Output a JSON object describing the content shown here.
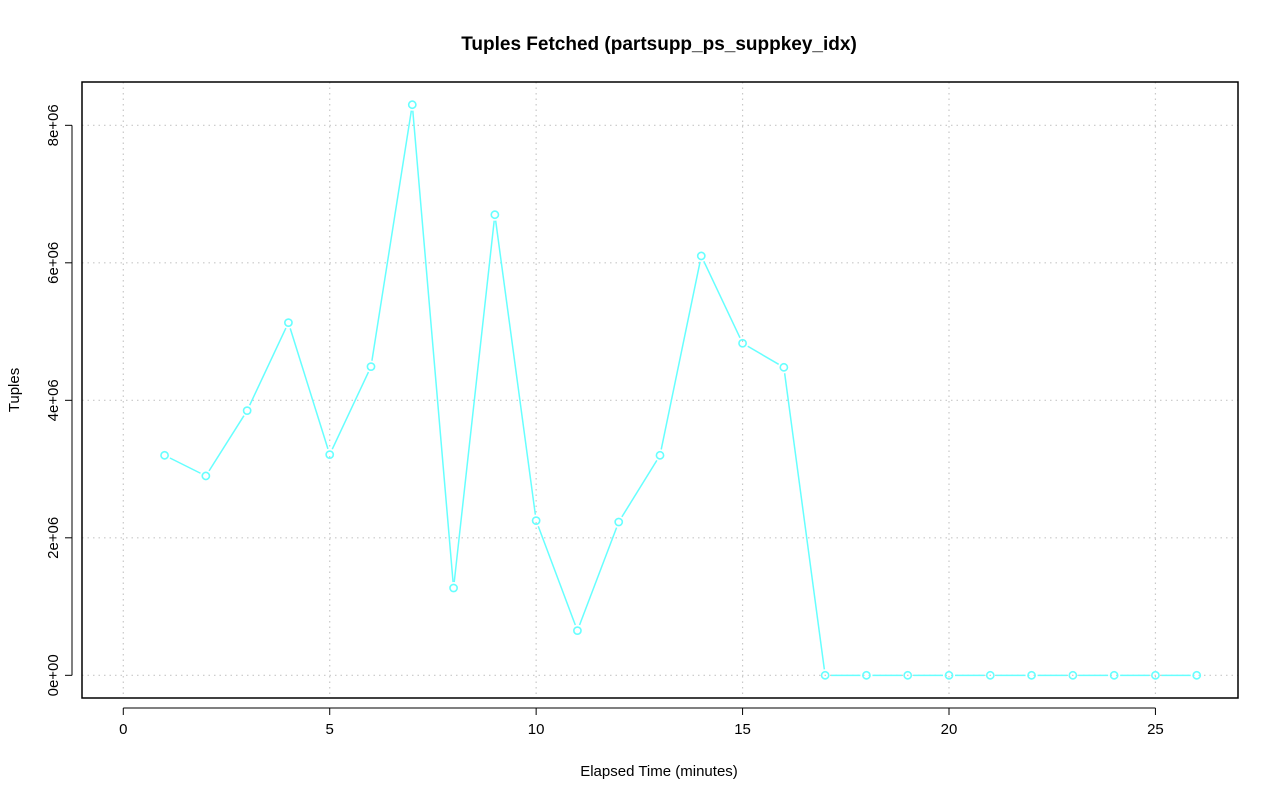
{
  "chart_data": {
    "type": "line",
    "title": "Tuples Fetched (partsupp_ps_suppkey_idx)",
    "xlabel": "Elapsed Time (minutes)",
    "ylabel": "Tuples",
    "xlim": [
      -1,
      27
    ],
    "ylim": [
      -330000,
      8630000
    ],
    "x_ticks": [
      0,
      5,
      10,
      15,
      20,
      25
    ],
    "x_tick_labels": [
      "0",
      "5",
      "10",
      "15",
      "20",
      "25"
    ],
    "y_ticks": [
      0,
      2000000,
      4000000,
      6000000,
      8000000
    ],
    "y_tick_labels": [
      "0e+00",
      "2e+06",
      "4e+06",
      "6e+06",
      "8e+06"
    ],
    "grid": true,
    "series": [
      {
        "color": "#66ffff",
        "marker": "open-circle",
        "x": [
          1,
          2,
          3,
          4,
          5,
          6,
          7,
          8,
          9,
          10,
          11,
          12,
          13,
          14,
          15,
          16,
          17,
          18,
          19,
          20,
          21,
          22,
          23,
          24,
          25,
          26
        ],
        "values": [
          3200000,
          2900000,
          3850000,
          5130000,
          3210000,
          4490000,
          8300000,
          1270000,
          6700000,
          2250000,
          650000,
          2230000,
          3200000,
          6100000,
          4830000,
          4480000,
          0,
          0,
          0,
          0,
          0,
          0,
          0,
          0,
          0,
          0
        ]
      }
    ]
  }
}
